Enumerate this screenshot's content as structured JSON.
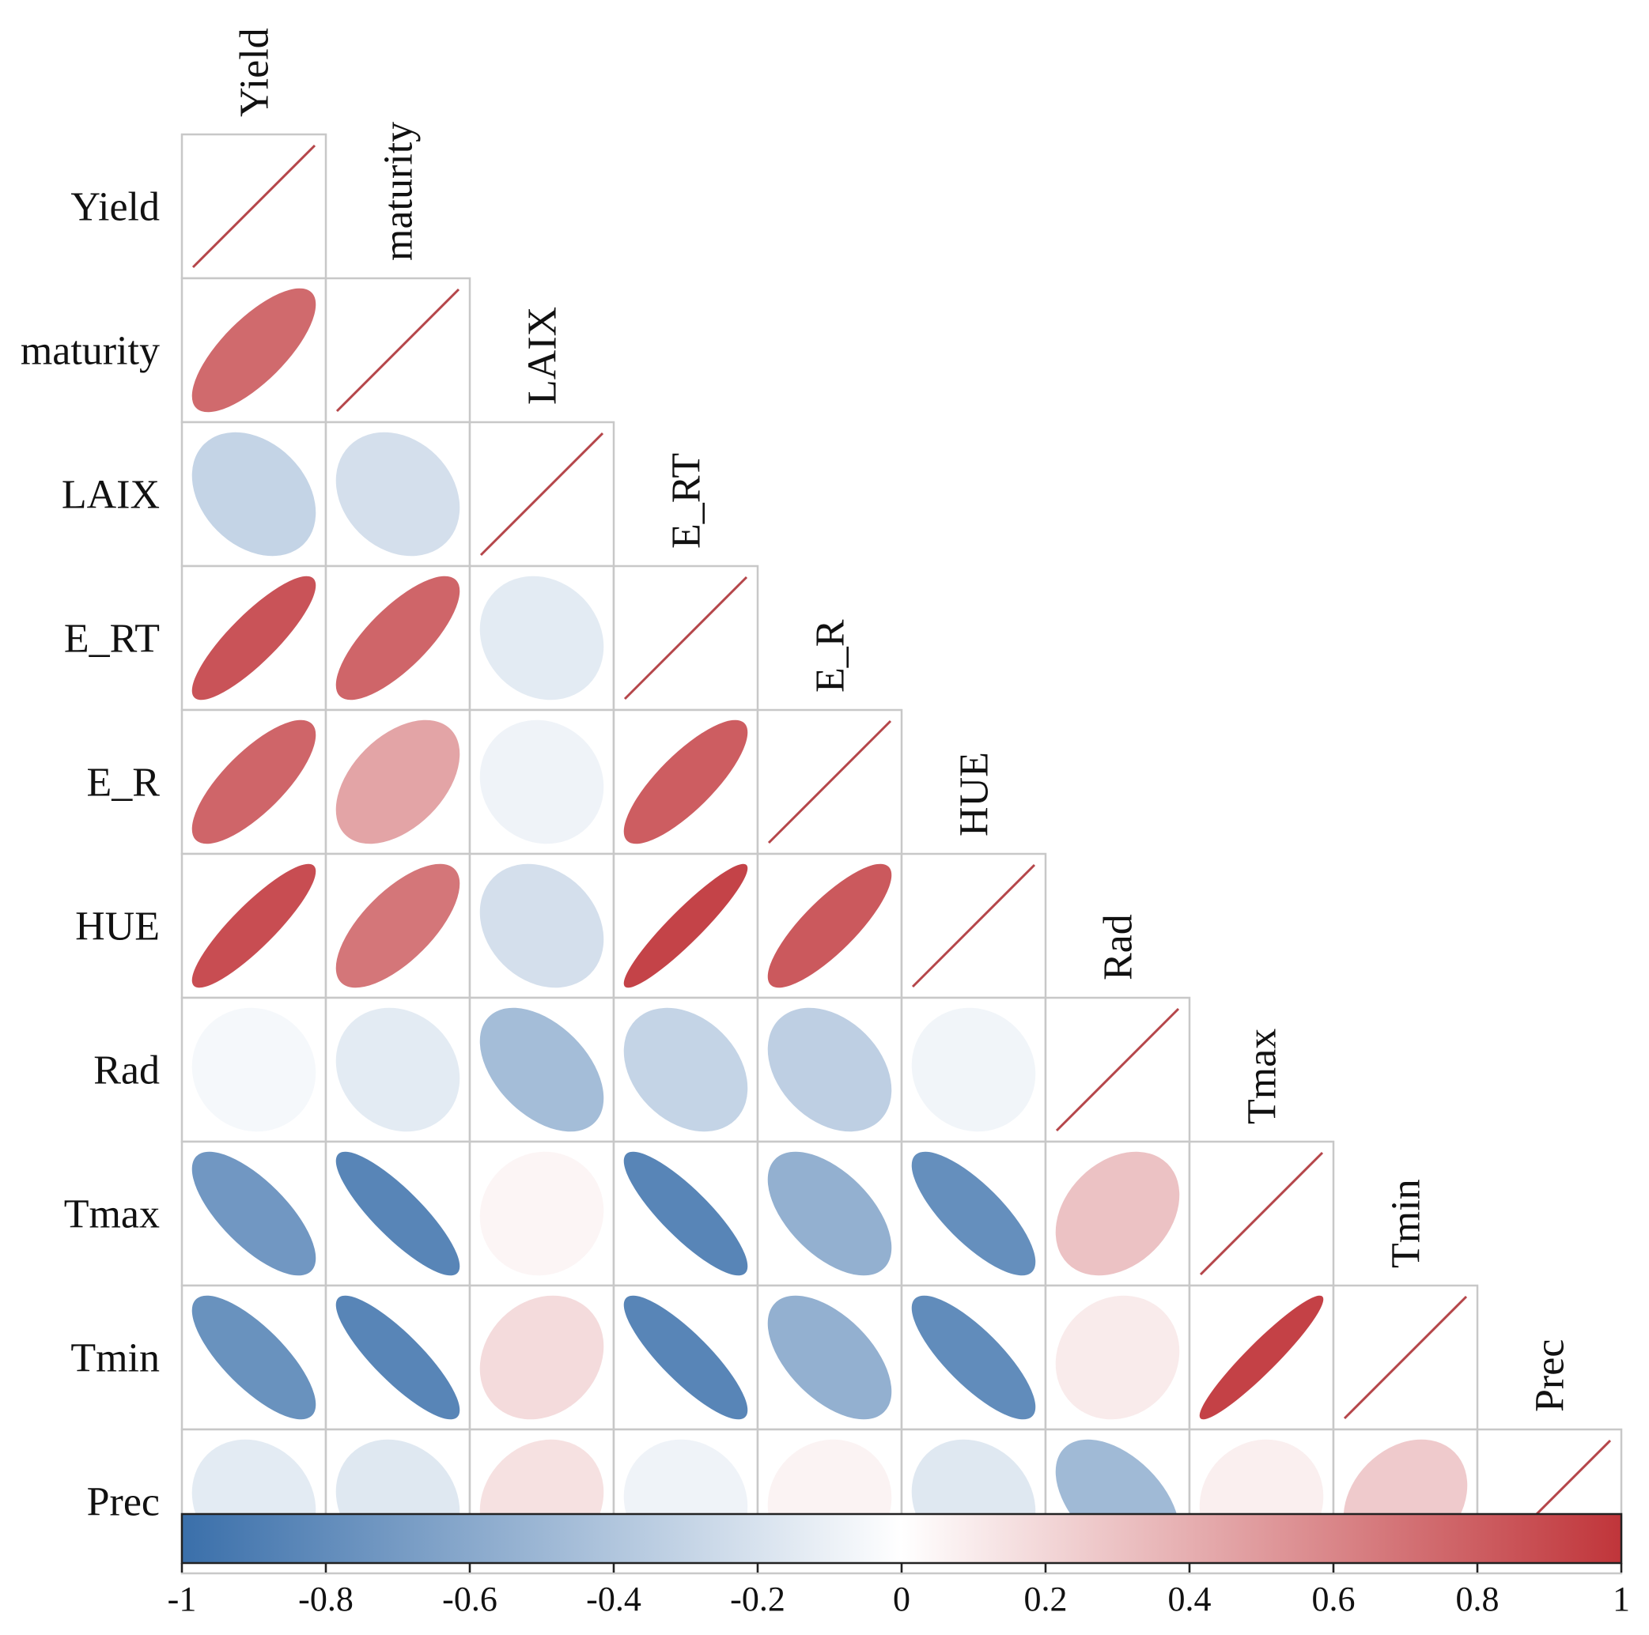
{
  "chart_data": {
    "type": "heatmap",
    "subtype": "correlation-ellipse-lower-triangle",
    "variables": [
      "Yield",
      "maturity",
      "LAIX",
      "E_RT",
      "E_R",
      "HUE",
      "Rad",
      "Tmax",
      "Tmin",
      "Prec"
    ],
    "correlations": [
      [
        1,
        0.74,
        -0.3,
        0.85,
        0.76,
        0.88,
        -0.05,
        -0.72,
        -0.76,
        -0.14
      ],
      [
        0.74,
        1,
        -0.22,
        0.76,
        0.45,
        0.68,
        -0.14,
        -0.85,
        -0.85,
        -0.16
      ],
      [
        -0.3,
        -0.22,
        1,
        -0.14,
        -0.08,
        -0.22,
        -0.46,
        0.05,
        0.18,
        0.15
      ],
      [
        0.85,
        0.76,
        -0.14,
        1,
        0.8,
        0.93,
        -0.3,
        -0.85,
        -0.85,
        -0.08
      ],
      [
        0.76,
        0.45,
        -0.08,
        0.8,
        1,
        0.82,
        -0.33,
        -0.55,
        -0.55,
        0.06
      ],
      [
        0.88,
        0.68,
        -0.22,
        0.93,
        0.82,
        1,
        -0.07,
        -0.78,
        -0.8,
        -0.16
      ],
      [
        -0.05,
        -0.14,
        -0.46,
        -0.3,
        -0.33,
        -0.07,
        1,
        0.3,
        0.1,
        -0.48
      ],
      [
        -0.72,
        -0.85,
        0.05,
        -0.85,
        -0.55,
        -0.78,
        0.3,
        1,
        0.94,
        0.08
      ],
      [
        -0.76,
        -0.85,
        0.18,
        -0.85,
        -0.55,
        -0.8,
        0.1,
        0.94,
        1,
        0.26
      ],
      [
        -0.14,
        -0.16,
        0.15,
        -0.08,
        0.06,
        -0.16,
        -0.48,
        0.08,
        0.26,
        1
      ]
    ],
    "colorbar": {
      "range": [
        -1,
        1
      ],
      "ticks": [
        "-1",
        "-0.8",
        "-0.6",
        "-0.4",
        "-0.2",
        "0",
        "0.2",
        "0.4",
        "0.6",
        "0.8",
        "1"
      ],
      "colors": {
        "negative": "#3A6FAA",
        "neutral": "#FFFFFF",
        "positive": "#C0353A"
      }
    },
    "diagonal_color": "#B5464A",
    "grid_color": "#C8C8C8"
  }
}
